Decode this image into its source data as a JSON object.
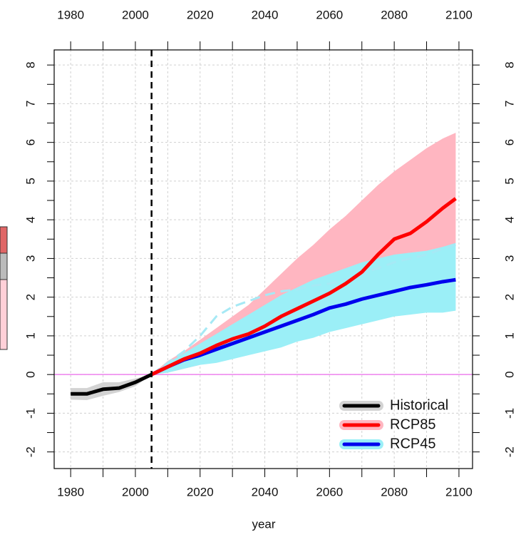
{
  "chart_data": {
    "type": "line",
    "xlabel": "year",
    "xlim": [
      1974.9,
      2104.2
    ],
    "ylim": [
      -2.43,
      8.39
    ],
    "xticks": [
      1980,
      2000,
      2020,
      2040,
      2060,
      2080,
      2100
    ],
    "xminorticks": [
      1990,
      2010,
      2030,
      2050,
      2070,
      2090
    ],
    "yticks": [
      -2,
      -1,
      0,
      1,
      2,
      3,
      4,
      5,
      6,
      7,
      8
    ],
    "yminorticks": [
      -1.5,
      -0.5,
      0.5,
      1.5,
      2.5,
      3.5,
      4.5,
      5.5,
      6.5,
      7.5
    ],
    "grid": true,
    "vline": 2005,
    "hline": 0,
    "hline_color": "#ee82ee",
    "legend_position": "bottom-right",
    "series": [
      {
        "name": "Historical",
        "color": "#000000",
        "band_color": "#d3d3d3",
        "x": [
          1980,
          1985,
          1990,
          1995,
          2000,
          2005
        ],
        "values": [
          -0.5,
          -0.5,
          -0.38,
          -0.35,
          -0.2,
          0
        ],
        "lower": [
          -0.65,
          -0.66,
          -0.55,
          -0.45,
          -0.3,
          0
        ],
        "upper": [
          -0.35,
          -0.35,
          -0.2,
          -0.2,
          -0.1,
          0
        ]
      },
      {
        "name": "RCP85",
        "color": "#ff0000",
        "band_color": "#ffb6c1",
        "x": [
          2005,
          2010,
          2015,
          2020,
          2025,
          2030,
          2035,
          2040,
          2045,
          2050,
          2055,
          2060,
          2065,
          2070,
          2075,
          2080,
          2085,
          2090,
          2095,
          2099
        ],
        "values": [
          0,
          0.2,
          0.4,
          0.55,
          0.75,
          0.92,
          1.05,
          1.25,
          1.5,
          1.7,
          1.9,
          2.1,
          2.35,
          2.65,
          3.1,
          3.5,
          3.65,
          3.95,
          4.3,
          4.55
        ],
        "lower": [
          0,
          0.05,
          0.15,
          0.25,
          0.4,
          0.55,
          0.7,
          0.85,
          1.0,
          1.2,
          1.35,
          1.55,
          1.75,
          1.95,
          2.2,
          2.45,
          2.7,
          2.9,
          3.15,
          3.4
        ],
        "upper": [
          0,
          0.35,
          0.6,
          0.9,
          1.2,
          1.5,
          1.8,
          2.2,
          2.6,
          3.0,
          3.35,
          3.75,
          4.1,
          4.5,
          4.9,
          5.25,
          5.55,
          5.85,
          6.1,
          6.25
        ]
      },
      {
        "name": "RCP45",
        "color": "#0000ee",
        "band_color": "#9beff7",
        "x": [
          2005,
          2010,
          2015,
          2020,
          2025,
          2030,
          2035,
          2040,
          2045,
          2050,
          2055,
          2060,
          2065,
          2070,
          2075,
          2080,
          2085,
          2090,
          2095,
          2099
        ],
        "values": [
          0,
          0.2,
          0.38,
          0.5,
          0.65,
          0.8,
          0.95,
          1.1,
          1.25,
          1.4,
          1.55,
          1.72,
          1.82,
          1.95,
          2.05,
          2.15,
          2.25,
          2.32,
          2.4,
          2.45
        ],
        "lower": [
          0,
          0.05,
          0.15,
          0.25,
          0.3,
          0.4,
          0.5,
          0.6,
          0.7,
          0.85,
          0.95,
          1.1,
          1.2,
          1.3,
          1.4,
          1.5,
          1.55,
          1.6,
          1.6,
          1.65
        ],
        "upper": [
          0,
          0.3,
          0.55,
          0.8,
          1.05,
          1.3,
          1.55,
          1.8,
          2.05,
          2.25,
          2.45,
          2.6,
          2.75,
          2.9,
          3.0,
          3.1,
          3.15,
          3.2,
          3.3,
          3.4
        ]
      },
      {
        "color": "#a6e9f5",
        "dashed": true,
        "x": [
          2005,
          2010,
          2015,
          2020,
          2025,
          2030,
          2035,
          2040,
          2045,
          2050,
          2055,
          2060,
          2065,
          2070,
          2075,
          2080,
          2085,
          2090,
          2095,
          2099
        ],
        "values": [
          0,
          0.3,
          0.6,
          1.0,
          1.5,
          1.75,
          1.9,
          2.05,
          2.15,
          2.2,
          2.3,
          2.35,
          2.45,
          2.6,
          2.75,
          2.9,
          3.0,
          3.1,
          3.25,
          3.35
        ]
      }
    ]
  }
}
